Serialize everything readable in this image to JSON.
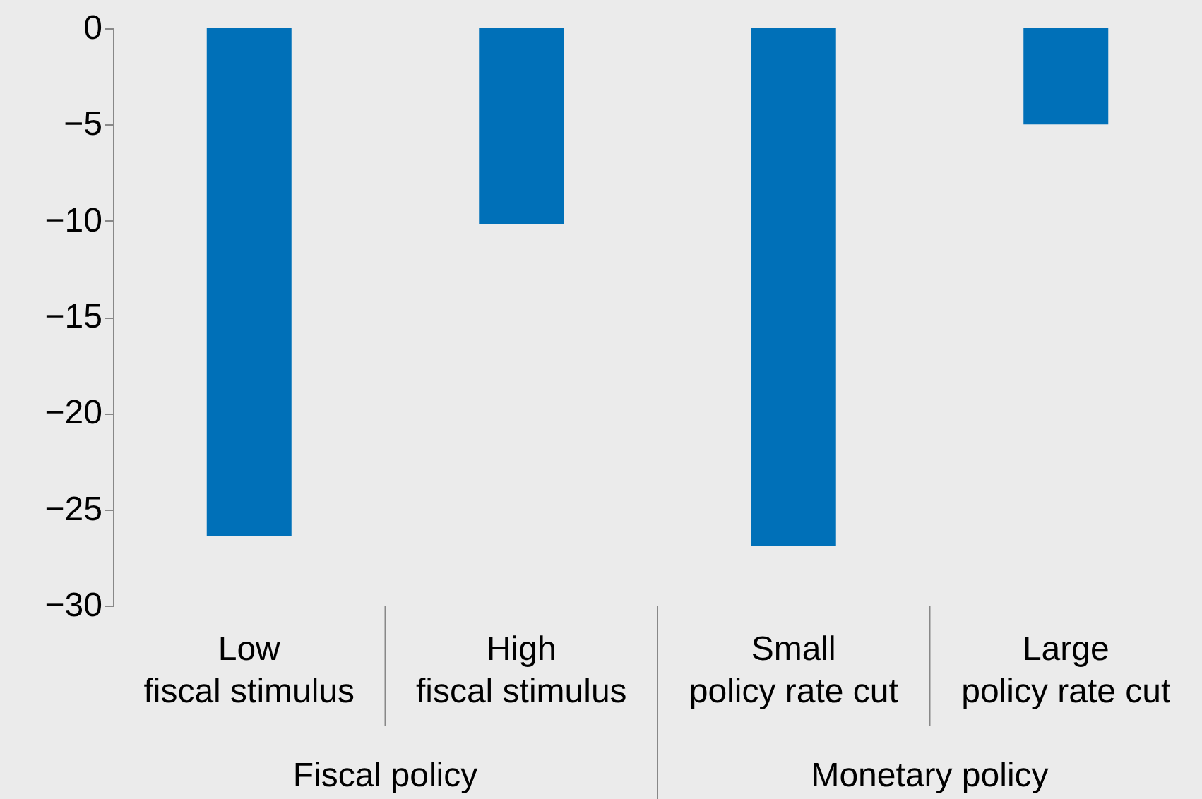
{
  "chart_data": {
    "type": "bar",
    "categories": [
      "Low fiscal stimulus",
      "High fiscal stimulus",
      "Small policy rate cut",
      "Large policy rate cut"
    ],
    "values": [
      -26.4,
      -10.2,
      -26.9,
      -5.0
    ],
    "color": "#0070b8",
    "ylim": [
      -30,
      0
    ],
    "yticks": [
      -30,
      -25,
      -20,
      -15,
      -10,
      -5,
      0
    ],
    "annotations": [
      "Fiscal policy",
      "Monetary policy"
    ]
  }
}
